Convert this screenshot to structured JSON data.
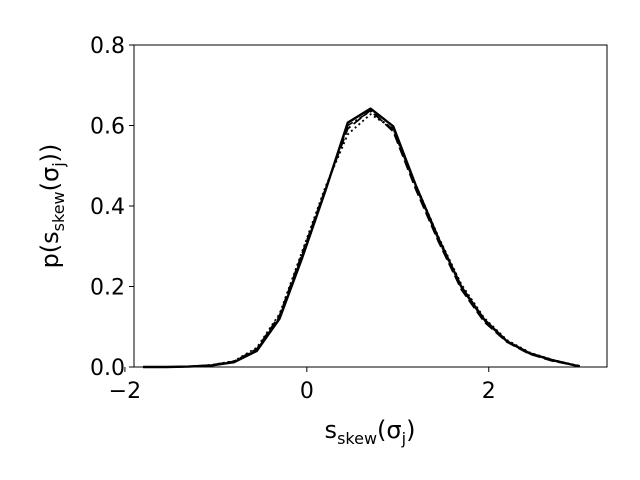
{
  "chart_data": {
    "type": "line",
    "title": "",
    "xlabel": {
      "base": "s",
      "sub": "skew",
      "mid": "(σ",
      "sub2": "j",
      "end": ")"
    },
    "ylabel": {
      "pre": "p(s",
      "sub": "skew",
      "mid": "(σ",
      "sub2": "j",
      "end": "))"
    },
    "xlim": [
      -1.9,
      3.3
    ],
    "ylim": [
      0.0,
      0.8
    ],
    "xticks": [
      -2,
      0,
      2
    ],
    "xtick_labels": [
      "−2",
      "0",
      "2"
    ],
    "yticks": [
      0.0,
      0.2,
      0.4,
      0.6,
      0.8
    ],
    "ytick_labels": [
      "0.0",
      "0.2",
      "0.4",
      "0.6",
      "0.8"
    ],
    "grid": false,
    "legend": "none",
    "x": [
      -1.8,
      -1.55,
      -1.3,
      -1.05,
      -0.8,
      -0.55,
      -0.3,
      -0.05,
      0.2,
      0.45,
      0.7,
      0.95,
      1.2,
      1.45,
      1.7,
      1.95,
      2.2,
      2.45,
      2.7,
      2.95,
      3.0
    ],
    "series": [
      {
        "style": "solid",
        "width": 2.4,
        "values": [
          0.0,
          0.0,
          0.001,
          0.004,
          0.012,
          0.04,
          0.12,
          0.272,
          0.435,
          0.607,
          0.642,
          0.598,
          0.45,
          0.318,
          0.199,
          0.118,
          0.064,
          0.034,
          0.017,
          0.004,
          0.002
        ]
      },
      {
        "style": "dashed",
        "width": 1.8,
        "values": [
          0.0,
          0.0,
          0.001,
          0.005,
          0.014,
          0.045,
          0.128,
          0.283,
          0.44,
          0.592,
          0.638,
          0.585,
          0.44,
          0.31,
          0.192,
          0.112,
          0.062,
          0.032,
          0.015,
          0.004,
          0.002
        ]
      },
      {
        "style": "dotted",
        "width": 1.8,
        "values": [
          0.0,
          0.0,
          0.001,
          0.005,
          0.015,
          0.048,
          0.132,
          0.288,
          0.445,
          0.578,
          0.628,
          0.592,
          0.452,
          0.322,
          0.205,
          0.122,
          0.067,
          0.036,
          0.018,
          0.005,
          0.003
        ]
      },
      {
        "style": "dashdot",
        "width": 1.6,
        "values": [
          0.0,
          0.0,
          0.001,
          0.004,
          0.013,
          0.043,
          0.124,
          0.278,
          0.438,
          0.6,
          0.635,
          0.59,
          0.446,
          0.314,
          0.196,
          0.115,
          0.063,
          0.033,
          0.016,
          0.004,
          0.002
        ]
      }
    ]
  },
  "colors": {
    "line": "#000000",
    "axes": "#000000",
    "background": "#ffffff"
  }
}
